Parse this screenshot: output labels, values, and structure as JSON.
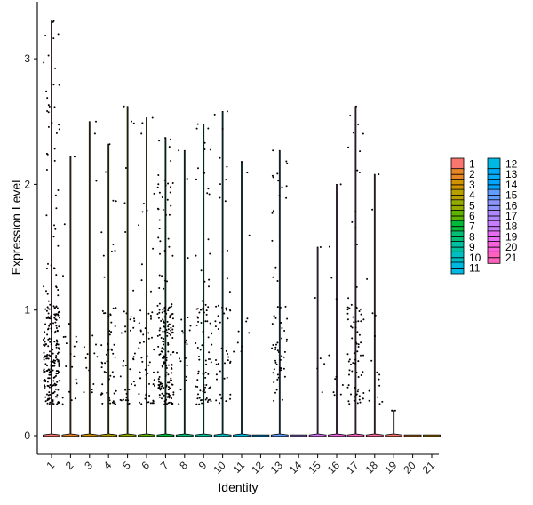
{
  "chart_data": {
    "type": "violin",
    "xlabel": "Identity",
    "ylabel": "Expression Level",
    "ylim": [
      -0.15,
      3.45
    ],
    "yticks": [
      "0",
      "1",
      "2",
      "3"
    ],
    "grid": false,
    "legend_position": "right",
    "legend_columns": 2,
    "categories": [
      "1",
      "2",
      "3",
      "4",
      "5",
      "6",
      "7",
      "8",
      "9",
      "10",
      "11",
      "12",
      "13",
      "14",
      "15",
      "16",
      "17",
      "18",
      "19",
      "20",
      "21"
    ],
    "colors": [
      "#F8766D",
      "#E88526",
      "#D39200",
      "#B79F00",
      "#93AA00",
      "#5EB300",
      "#00BA38",
      "#00BF74",
      "#00C19F",
      "#00BFC4",
      "#00B9E3",
      "#00ADFA",
      "#619CFF",
      "#AE87FF",
      "#DB72FB",
      "#F564E3",
      "#FF61C3",
      "#FF699C",
      "#F8766D",
      "#E88526",
      "#D39200"
    ],
    "legend_colors": [
      "#F8766D",
      "#E88526",
      "#D39200",
      "#B79F00",
      "#93AA00",
      "#5EB300",
      "#00BA38",
      "#00BF74",
      "#00C19F",
      "#00BFC4",
      "#00B9E3",
      "#00B9E3",
      "#00ADFA",
      "#00A5FF",
      "#619CFF",
      "#8B93FF",
      "#AE87FF",
      "#C77CFF",
      "#E76BF3",
      "#FA62DB",
      "#FF62BC"
    ],
    "max_expression": [
      3.3,
      2.22,
      2.5,
      2.32,
      2.62,
      2.53,
      2.37,
      2.27,
      2.48,
      2.58,
      2.18,
      0,
      2.27,
      0,
      1.5,
      2.0,
      2.62,
      2.08,
      0.2,
      0,
      0
    ],
    "dense_cells": [
      250,
      20,
      15,
      60,
      40,
      60,
      200,
      20,
      90,
      50,
      10,
      0,
      60,
      0,
      5,
      10,
      80,
      15,
      2,
      0,
      0
    ],
    "legend": [
      "1",
      "2",
      "3",
      "4",
      "5",
      "6",
      "7",
      "8",
      "9",
      "10",
      "11",
      "12",
      "13",
      "14",
      "15",
      "16",
      "17",
      "18",
      "19",
      "20",
      "21"
    ]
  }
}
